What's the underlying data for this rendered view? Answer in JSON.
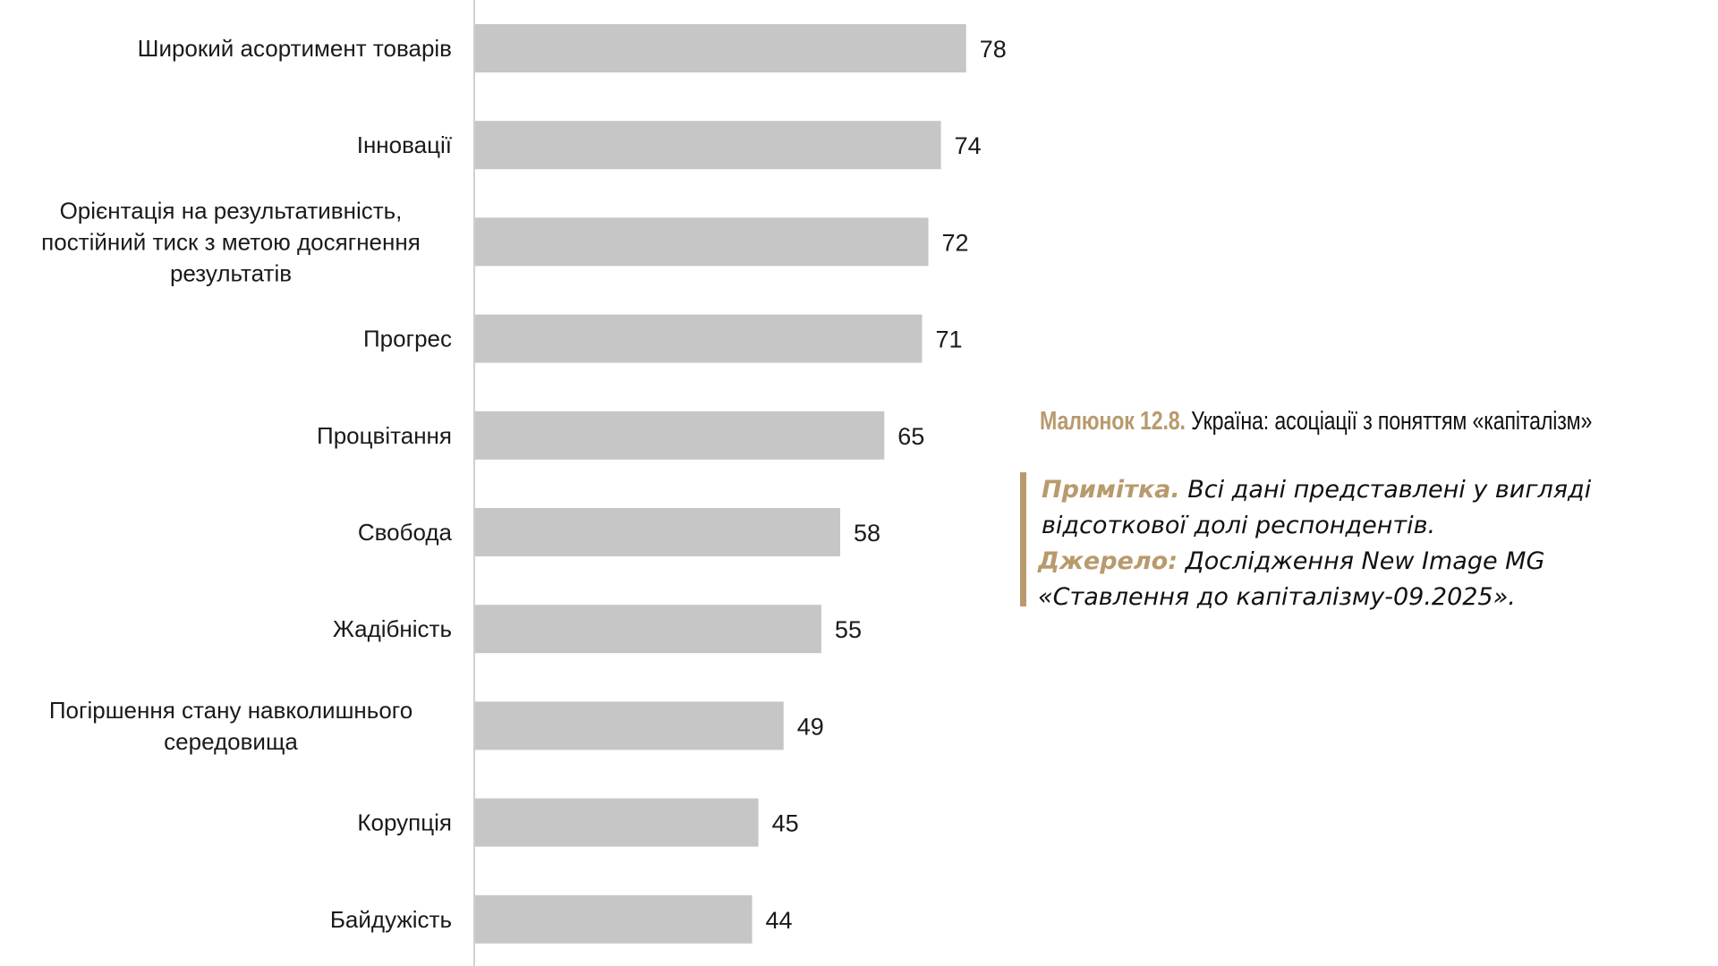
{
  "chart_data": {
    "type": "bar",
    "orientation": "horizontal",
    "categories": [
      [
        "Широкий асортимент товарів"
      ],
      [
        "Інновації"
      ],
      [
        "Орієнтація на результативність,",
        "постійний тиск з метою досягнення",
        "результатів"
      ],
      [
        "Прогрес"
      ],
      [
        "Процвітання"
      ],
      [
        "Свобода"
      ],
      [
        "Жадібність"
      ],
      [
        "Погіршення стану навколишнього",
        "середовища"
      ],
      [
        "Корупція"
      ],
      [
        "Байдужість"
      ]
    ],
    "values": [
      78,
      74,
      72,
      71,
      65,
      58,
      55,
      49,
      45,
      44
    ],
    "xlim": [
      0,
      100
    ],
    "grid": false,
    "bar_color": "#c6c6c6",
    "axis_color": "#d0d0d0",
    "title": "",
    "xlabel": "",
    "ylabel": ""
  },
  "caption": {
    "figure_number": "Малюнок 12.8.",
    "title": "Україна: асоціації з поняттям «капіталізм»"
  },
  "note": {
    "label": "Примітка.",
    "text": "Всі дані представлені у вигляді відсоткової долі респондентів."
  },
  "source": {
    "label": "Джерело:",
    "text": "Дослідження New Image MG «Ставлення до капіталізму-09.2025»."
  },
  "colors": {
    "accent": "#b89a6d",
    "bar": "#c6c6c6"
  }
}
